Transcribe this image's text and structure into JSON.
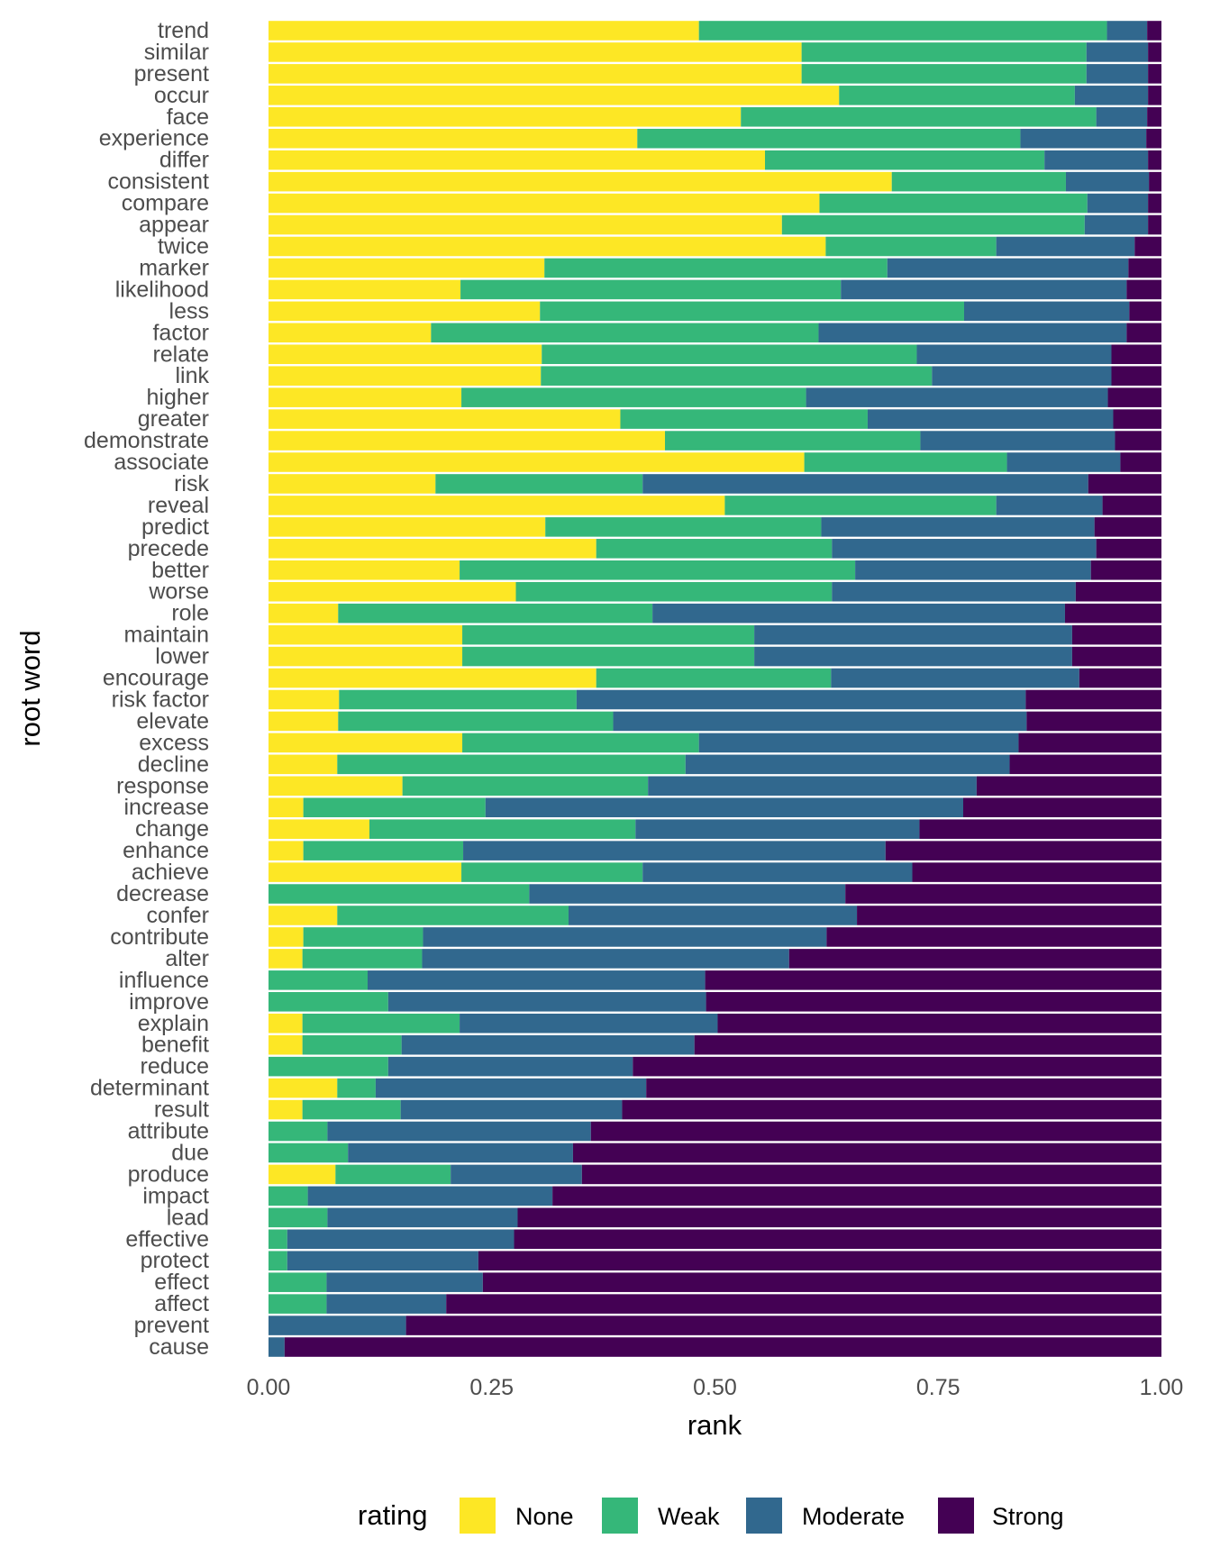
{
  "chart_data": {
    "type": "bar",
    "orientation": "horizontal",
    "stacked": true,
    "xlabel": "rank",
    "ylabel": "root word",
    "xlim": [
      0,
      1
    ],
    "xticks": [
      "0.00",
      "0.25",
      "0.50",
      "0.75",
      "1.00"
    ],
    "xtick_values": [
      0,
      0.25,
      0.5,
      0.75,
      1
    ],
    "grid": false,
    "legend": {
      "title": "rating",
      "position": "bottom"
    },
    "categories": [
      "trend",
      "similar",
      "present",
      "occur",
      "face",
      "experience",
      "differ",
      "consistent",
      "compare",
      "appear",
      "twice",
      "marker",
      "likelihood",
      "less",
      "factor",
      "relate",
      "link",
      "higher",
      "greater",
      "demonstrate",
      "associate",
      "risk",
      "reveal",
      "predict",
      "precede",
      "better",
      "worse",
      "role",
      "maintain",
      "lower",
      "encourage",
      "risk factor",
      "elevate",
      "excess",
      "decline",
      "response",
      "increase",
      "change",
      "enhance",
      "achieve",
      "decrease",
      "confer",
      "contribute",
      "alter",
      "influence",
      "improve",
      "explain",
      "benefit",
      "reduce",
      "determinant",
      "result",
      "attribute",
      "due",
      "produce",
      "impact",
      "lead",
      "effective",
      "protect",
      "effect",
      "affect",
      "prevent",
      "cause"
    ],
    "series": [
      {
        "name": "None",
        "color": "#FDE725",
        "values": [
          0.482,
          0.597,
          0.597,
          0.639,
          0.529,
          0.413,
          0.556,
          0.698,
          0.617,
          0.575,
          0.624,
          0.309,
          0.215,
          0.304,
          0.182,
          0.306,
          0.305,
          0.216,
          0.394,
          0.444,
          0.6,
          0.187,
          0.511,
          0.31,
          0.367,
          0.214,
          0.277,
          0.078,
          0.217,
          0.217,
          0.367,
          0.079,
          0.078,
          0.217,
          0.077,
          0.15,
          0.039,
          0.113,
          0.039,
          0.216,
          0,
          0.077,
          0.039,
          0.038,
          0,
          0,
          0.038,
          0.038,
          0,
          0.077,
          0.038,
          0,
          0,
          0.075,
          0,
          0,
          0,
          0,
          0,
          0,
          0,
          0
        ]
      },
      {
        "name": "Weak",
        "color": "#35B779",
        "values": [
          0.457,
          0.319,
          0.319,
          0.264,
          0.398,
          0.429,
          0.313,
          0.195,
          0.3,
          0.339,
          0.191,
          0.384,
          0.426,
          0.475,
          0.434,
          0.42,
          0.438,
          0.386,
          0.277,
          0.286,
          0.227,
          0.232,
          0.304,
          0.309,
          0.264,
          0.443,
          0.354,
          0.352,
          0.327,
          0.327,
          0.263,
          0.266,
          0.308,
          0.265,
          0.39,
          0.275,
          0.204,
          0.298,
          0.179,
          0.203,
          0.292,
          0.259,
          0.134,
          0.134,
          0.111,
          0.134,
          0.176,
          0.111,
          0.134,
          0.043,
          0.11,
          0.066,
          0.089,
          0.129,
          0.044,
          0.066,
          0.021,
          0.021,
          0.065,
          0.065,
          0,
          0
        ]
      },
      {
        "name": "Moderate",
        "color": "#31688E",
        "values": [
          0.045,
          0.069,
          0.069,
          0.082,
          0.057,
          0.141,
          0.116,
          0.093,
          0.068,
          0.071,
          0.155,
          0.27,
          0.32,
          0.185,
          0.345,
          0.218,
          0.201,
          0.338,
          0.275,
          0.218,
          0.127,
          0.499,
          0.119,
          0.306,
          0.296,
          0.264,
          0.273,
          0.462,
          0.356,
          0.356,
          0.278,
          0.503,
          0.463,
          0.358,
          0.363,
          0.368,
          0.535,
          0.318,
          0.473,
          0.302,
          0.354,
          0.323,
          0.452,
          0.411,
          0.378,
          0.356,
          0.289,
          0.328,
          0.274,
          0.303,
          0.248,
          0.295,
          0.252,
          0.147,
          0.274,
          0.213,
          0.254,
          0.214,
          0.175,
          0.134,
          0.154,
          0.018
        ]
      },
      {
        "name": "Strong",
        "color": "#440154",
        "values": [
          0.016,
          0.015,
          0.015,
          0.015,
          0.016,
          0.017,
          0.015,
          0.014,
          0.015,
          0.015,
          0.03,
          0.037,
          0.039,
          0.036,
          0.039,
          0.056,
          0.056,
          0.06,
          0.054,
          0.052,
          0.046,
          0.082,
          0.066,
          0.075,
          0.073,
          0.079,
          0.096,
          0.108,
          0.1,
          0.1,
          0.092,
          0.152,
          0.151,
          0.16,
          0.17,
          0.207,
          0.222,
          0.271,
          0.309,
          0.279,
          0.354,
          0.341,
          0.375,
          0.417,
          0.511,
          0.51,
          0.497,
          0.523,
          0.592,
          0.577,
          0.604,
          0.639,
          0.659,
          0.649,
          0.682,
          0.721,
          0.725,
          0.765,
          0.76,
          0.801,
          0.846,
          0.982
        ]
      }
    ]
  }
}
